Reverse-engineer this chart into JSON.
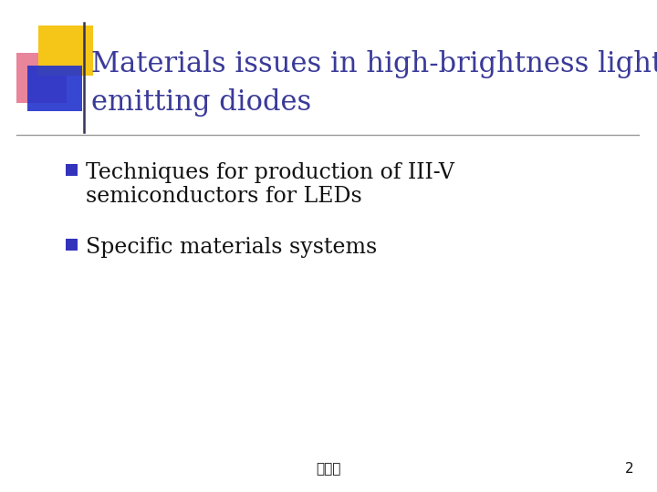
{
  "title_line1": "Materials issues in high-brightness light-",
  "title_line2": "emitting diodes",
  "title_color": "#3a3a99",
  "bullet1_line1": "Techniques for production of III-V",
  "bullet1_line2": "semiconductors for LEDs",
  "bullet2": "Specific materials systems",
  "bullet_color": "#111111",
  "bullet_square_color": "#3333bb",
  "footer_text": "屋婲琳",
  "page_number": "2",
  "background_color": "#ffffff",
  "divider_color": "#999999",
  "decoration_yellow": "#f5c518",
  "decoration_red_pink": "#dd4466",
  "decoration_blue": "#2233cc",
  "title_fontsize": 22,
  "bullet_fontsize": 17
}
